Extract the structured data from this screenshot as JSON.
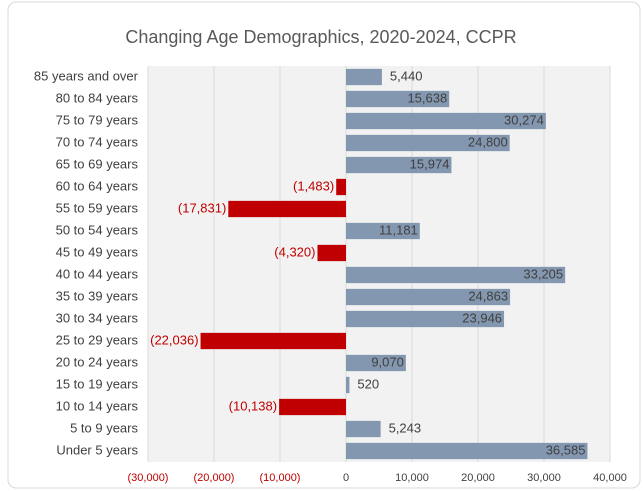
{
  "chart_data": {
    "type": "bar",
    "orientation": "horizontal",
    "title": "Changing Age Demographics, 2020-2024, CCPR",
    "categories": [
      "85 years and over",
      "80 to 84 years",
      "75 to 79 years",
      "70 to 74 years",
      "65 to 69 years",
      "60 to 64 years",
      "55 to 59 years",
      "50 to 54 years",
      "45 to 49 years",
      "40 to 44 years",
      "35 to 39 years",
      "30 to 34 years",
      "25 to 29 years",
      "20 to 24 years",
      "15 to 19 years",
      "10 to 14 years",
      "5 to 9 years",
      "Under 5 years"
    ],
    "values": [
      5440,
      15638,
      30274,
      24800,
      15974,
      -1483,
      -17831,
      11181,
      -4320,
      33205,
      24863,
      23946,
      -22036,
      9070,
      520,
      -10138,
      5243,
      36585
    ],
    "value_labels": [
      "5,440",
      "15,638",
      "30,274",
      "24,800",
      "15,974",
      "(1,483)",
      "(17,831)",
      "11,181",
      "(4,320)",
      "33,205",
      "24,863",
      "23,946",
      "(22,036)",
      "9,070",
      "520",
      "(10,138)",
      "5,243",
      "36,585"
    ],
    "color": "#8497b0",
    "negative_color": "#c00000",
    "xlim": [
      -30000,
      40000
    ],
    "xticks": [
      {
        "value": -30000,
        "label": "(30,000)"
      },
      {
        "value": -20000,
        "label": "(20,000)"
      },
      {
        "value": -10000,
        "label": "(10,000)"
      },
      0,
      {
        "value": 10000,
        "label": "10,000"
      },
      {
        "value": 20000,
        "label": "20,000"
      },
      {
        "value": 30000,
        "label": "30,000"
      },
      {
        "value": 40000,
        "label": "40,000"
      }
    ],
    "grid": true
  }
}
